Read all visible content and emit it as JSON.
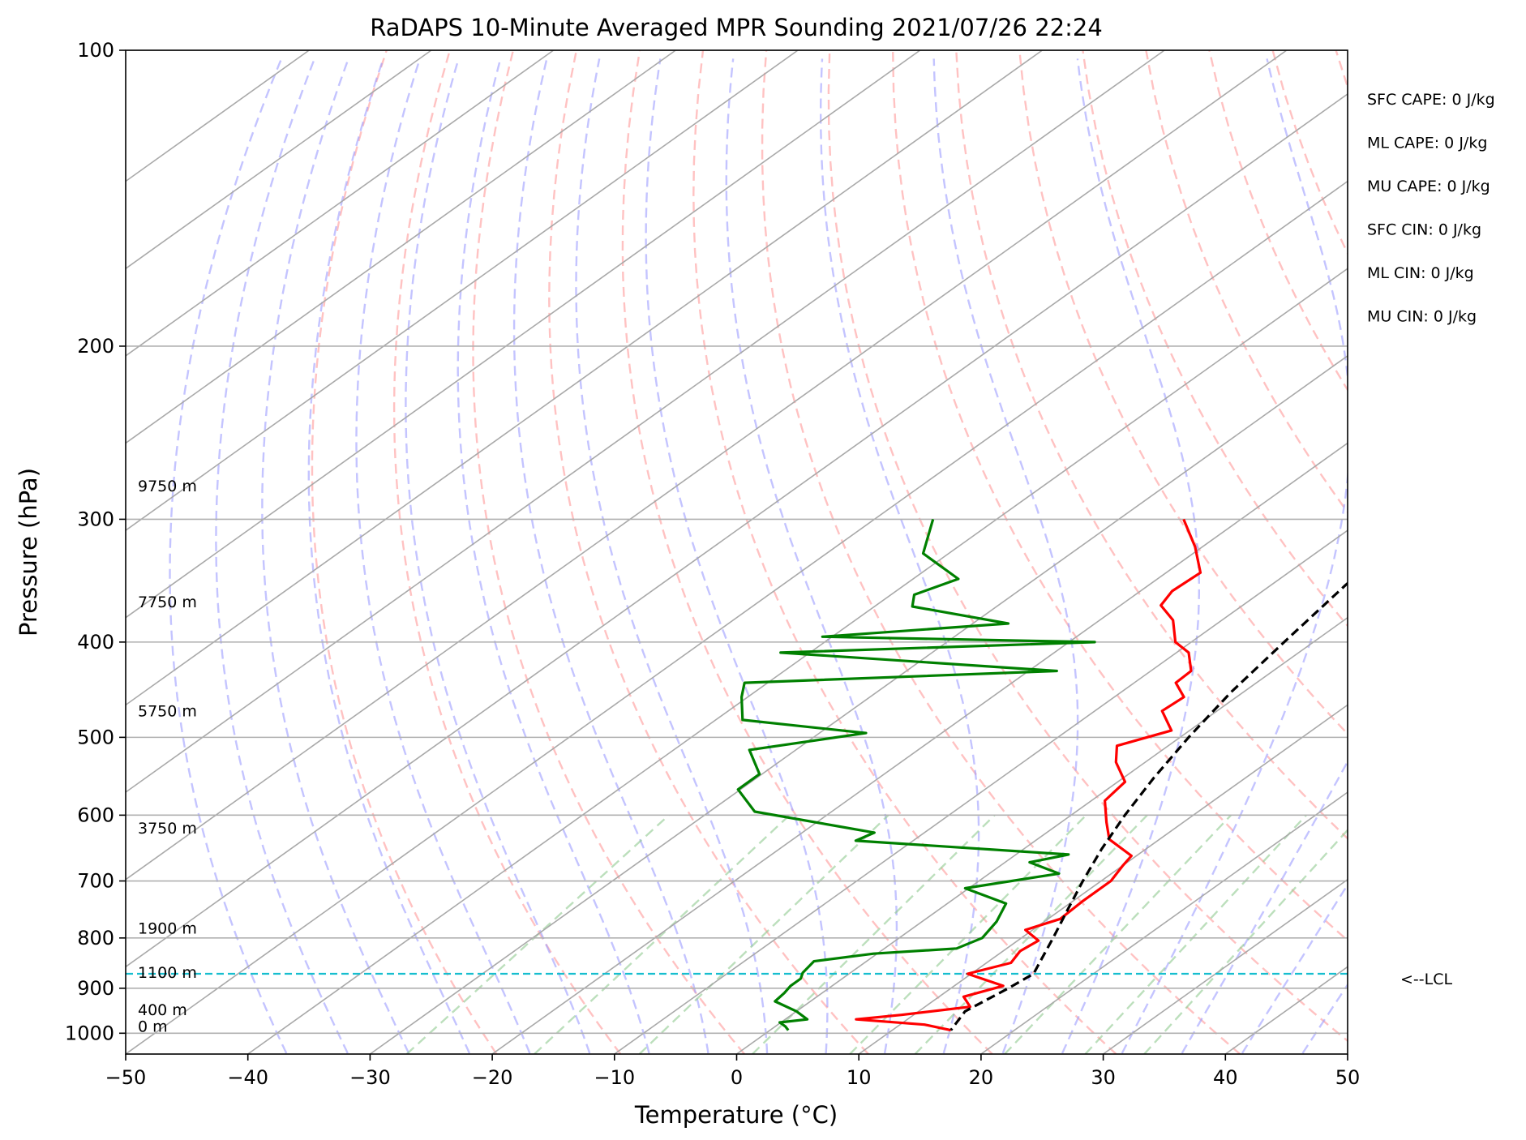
{
  "chart_data": {
    "type": "line",
    "title": "RaDAPS 10-Minute Averaged MPR Sounding 2021/07/26 22:24",
    "xlabel": "Temperature (°C)",
    "ylabel": "Pressure (hPa)",
    "xlim": [
      -50,
      50
    ],
    "ylim": [
      1050,
      100
    ],
    "y_scale": "log",
    "xticks": [
      -50,
      -40,
      -30,
      -20,
      -10,
      0,
      10,
      20,
      30,
      40,
      50
    ],
    "xtick_labels": [
      "−50",
      "−40",
      "−30",
      "−20",
      "−10",
      "0",
      "10",
      "20",
      "30",
      "40",
      "50"
    ],
    "yticks": [
      100,
      200,
      300,
      400,
      500,
      600,
      700,
      800,
      900,
      1000
    ],
    "ytick_labels": [
      "100",
      "200",
      "300",
      "400",
      "500",
      "600",
      "700",
      "800",
      "900",
      "1000"
    ],
    "grid": true,
    "height_labels": [
      {
        "p": 282,
        "text": "9750 m"
      },
      {
        "p": 370,
        "text": "7750 m"
      },
      {
        "p": 478,
        "text": "5750 m"
      },
      {
        "p": 629,
        "text": "3750 m"
      },
      {
        "p": 795,
        "text": "1900 m"
      },
      {
        "p": 882,
        "text": "1100 m"
      },
      {
        "p": 962,
        "text": "400 m"
      },
      {
        "p": 1000,
        "text": "0 m"
      }
    ],
    "lcl": {
      "p": 870,
      "label": "<--LCL"
    },
    "stats": [
      "SFC CAPE: 0 J/kg",
      "ML CAPE: 0 J/kg",
      "MU CAPE: 0 J/kg",
      "SFC CIN: 0 J/kg",
      "ML CIN: 0 J/kg",
      "MU CIN: 0 J/kg"
    ],
    "series": [
      {
        "role": "temperature",
        "color": "#ff0000",
        "points": [
          [
            300,
            -24.7
          ],
          [
            320,
            -20.6
          ],
          [
            340,
            -17.2
          ],
          [
            355,
            -17.4
          ],
          [
            367,
            -16.7
          ],
          [
            380,
            -14.0
          ],
          [
            400,
            -11.3
          ],
          [
            410,
            -9.0
          ],
          [
            428,
            -6.7
          ],
          [
            440,
            -6.6
          ],
          [
            455,
            -4.3
          ],
          [
            470,
            -4.5
          ],
          [
            492,
            -1.5
          ],
          [
            510,
            -4.2
          ],
          [
            530,
            -2.4
          ],
          [
            555,
            0.6
          ],
          [
            580,
            1.1
          ],
          [
            610,
            3.7
          ],
          [
            635,
            5.9
          ],
          [
            660,
            9.6
          ],
          [
            675,
            10.0
          ],
          [
            700,
            10.8
          ],
          [
            735,
            10.8
          ],
          [
            765,
            11.0
          ],
          [
            785,
            9.4
          ],
          [
            805,
            11.7
          ],
          [
            825,
            11.4
          ],
          [
            848,
            12.0
          ],
          [
            870,
            9.7
          ],
          [
            895,
            14.0
          ],
          [
            918,
            12.0
          ],
          [
            940,
            13.7
          ],
          [
            958,
            9.0
          ],
          [
            968,
            5.8
          ],
          [
            980,
            12.0
          ],
          [
            993,
            14.8
          ]
        ]
      },
      {
        "role": "dewpoint",
        "color": "#008000",
        "points": [
          [
            300,
            -45.2
          ],
          [
            325,
            -42.1
          ],
          [
            345,
            -36.3
          ],
          [
            358,
            -38.1
          ],
          [
            368,
            -36.9
          ],
          [
            383,
            -27.1
          ],
          [
            395,
            -40.8
          ],
          [
            400,
            -17.9
          ],
          [
            410,
            -42.4
          ],
          [
            428,
            -17.7
          ],
          [
            440,
            -41.9
          ],
          [
            455,
            -40.5
          ],
          [
            480,
            -37.8
          ],
          [
            495,
            -26.2
          ],
          [
            515,
            -33.8
          ],
          [
            545,
            -30.2
          ],
          [
            565,
            -30.2
          ],
          [
            595,
            -26.3
          ],
          [
            625,
            -14.1
          ],
          [
            637,
            -14.7
          ],
          [
            658,
            4.3
          ],
          [
            670,
            2.0
          ],
          [
            688,
            5.7
          ],
          [
            712,
            -0.3
          ],
          [
            738,
            4.8
          ],
          [
            770,
            6.1
          ],
          [
            800,
            6.8
          ],
          [
            820,
            5.9
          ],
          [
            830,
            -0.3
          ],
          [
            845,
            -4.3
          ],
          [
            868,
            -3.9
          ],
          [
            880,
            -3.4
          ],
          [
            895,
            -3.4
          ],
          [
            910,
            -3.1
          ],
          [
            928,
            -2.9
          ],
          [
            950,
            0.0
          ],
          [
            968,
            1.8
          ],
          [
            975,
            -0.1
          ],
          [
            984,
            0.8
          ],
          [
            993,
            1.5
          ]
        ]
      },
      {
        "role": "parcel",
        "color": "#000000",
        "points": [
          [
            300,
            -5.2
          ],
          [
            350,
            -3.9
          ],
          [
            400,
            -2.4
          ],
          [
            450,
            -1.0
          ],
          [
            500,
            0.7
          ],
          [
            550,
            2.5
          ],
          [
            600,
            4.4
          ],
          [
            650,
            6.4
          ],
          [
            700,
            8.5
          ],
          [
            750,
            10.6
          ],
          [
            800,
            12.6
          ],
          [
            850,
            14.4
          ],
          [
            870,
            15.1
          ],
          [
            900,
            14.7
          ],
          [
            950,
            13.8
          ],
          [
            993,
            14.8
          ]
        ]
      }
    ]
  }
}
